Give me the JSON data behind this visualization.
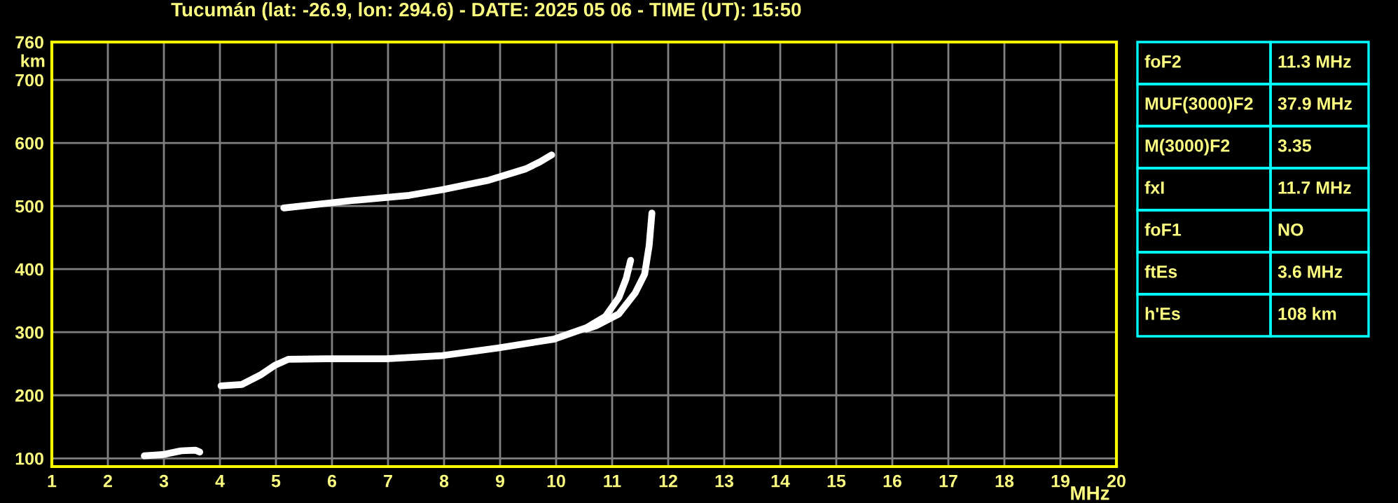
{
  "chart_data": {
    "type": "line",
    "title": "Tucumán (lat: -26.9, lon: 294.6) - DATE: 2025 05 06 - TIME (UT): 15:50",
    "xlabel": "MHz",
    "ylabel": "km",
    "xlim": [
      1,
      20
    ],
    "xticks": [
      1,
      2,
      3,
      4,
      5,
      6,
      7,
      8,
      9,
      10,
      11,
      12,
      13,
      14,
      15,
      16,
      17,
      18,
      19,
      20
    ],
    "ylim": [
      87,
      760
    ],
    "yticks": [
      100,
      200,
      300,
      400,
      500,
      600,
      700,
      760
    ],
    "grid": true,
    "marker": "none",
    "line_style": "solid",
    "series": [
      {
        "color": "#ffffff",
        "x": [
          4.02,
          4.39,
          4.72,
          4.97,
          5.22,
          5.89,
          6.97,
          7.97,
          8.96,
          9.96,
          10.54,
          10.88,
          11.12,
          11.25,
          11.33
        ],
        "values": [
          215,
          217,
          232,
          247,
          257,
          258,
          258,
          263,
          275,
          289,
          307,
          325,
          355,
          385,
          414
        ]
      },
      {
        "color": "#ffffff",
        "x": [
          10.54,
          10.71,
          11.12,
          11.41,
          11.58,
          11.66,
          11.71
        ],
        "values": [
          305,
          310,
          329,
          362,
          392,
          437,
          489
        ]
      },
      {
        "color": "#ffffff",
        "x": [
          5.14,
          6.39,
          7.38,
          7.97,
          8.8,
          9.46,
          9.71,
          9.92
        ],
        "values": [
          497,
          509,
          517,
          526,
          541,
          559,
          570,
          581
        ]
      },
      {
        "color": "#ffffff",
        "x": [
          2.65,
          2.98,
          3.31,
          3.56,
          3.64
        ],
        "values": [
          104,
          106,
          112,
          113,
          110
        ]
      }
    ],
    "annotations": [
      "foF2",
      "11.3 MHz",
      "MUF(3000)F2",
      "37.9 MHz",
      "M(3000)F2",
      "3.35",
      "fxI",
      "11.7 MHz",
      "foF1",
      "NO",
      "ftEs",
      "3.6 MHz",
      "h'Es",
      "108 km"
    ]
  }
}
